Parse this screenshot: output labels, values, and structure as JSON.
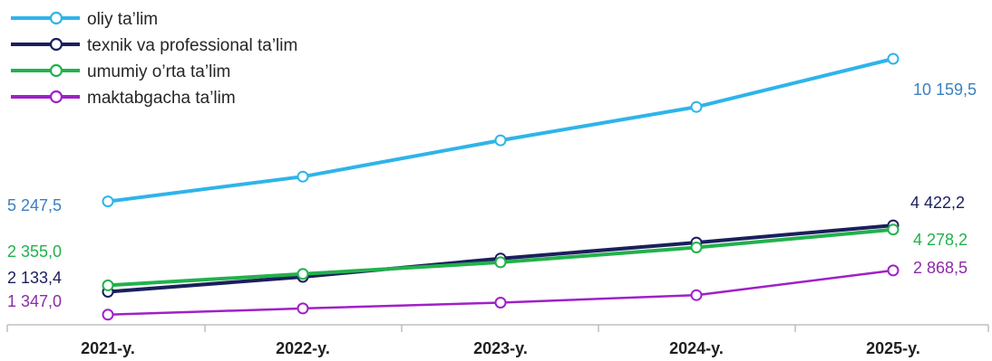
{
  "chart_data": {
    "type": "line",
    "title": "",
    "xlabel": "",
    "ylabel": "",
    "x": [
      "2021-y.",
      "2022-y.",
      "2023-y.",
      "2024-y.",
      "2025-y."
    ],
    "ylim": [
      0,
      11000
    ],
    "grid": false,
    "legend": "top-left",
    "series": [
      {
        "name": "oliy ta’lim",
        "color": "#2fb4e9",
        "values": [
          5247.5,
          6100,
          7350,
          8500,
          10159.5
        ],
        "labels": {
          "first": "5 247,5",
          "last": "10 159,5"
        },
        "label_color": "#3a7fc1"
      },
      {
        "name": "texnik va professional ta’lim",
        "color": "#1b1f5c",
        "values": [
          2133.4,
          2650,
          3280,
          3830,
          4422.2
        ],
        "labels": {
          "first": "2 133,4",
          "last": "4 422,2"
        },
        "label_color": "#1b1f5c"
      },
      {
        "name": "umumiy o’rta ta’lim",
        "color": "#22b14c",
        "values": [
          2355.0,
          2750,
          3150,
          3660,
          4278.2
        ],
        "labels": {
          "first": "2 355,0",
          "last": "4 278,2"
        },
        "label_color": "#22b14c"
      },
      {
        "name": "maktabgacha ta’lim",
        "color": "#a020c8",
        "values": [
          1347.0,
          1560,
          1760,
          2020,
          2868.5
        ],
        "labels": {
          "first": "1 347,0",
          "last": "2 868,5"
        },
        "label_color": "#8b2ca8"
      }
    ]
  }
}
